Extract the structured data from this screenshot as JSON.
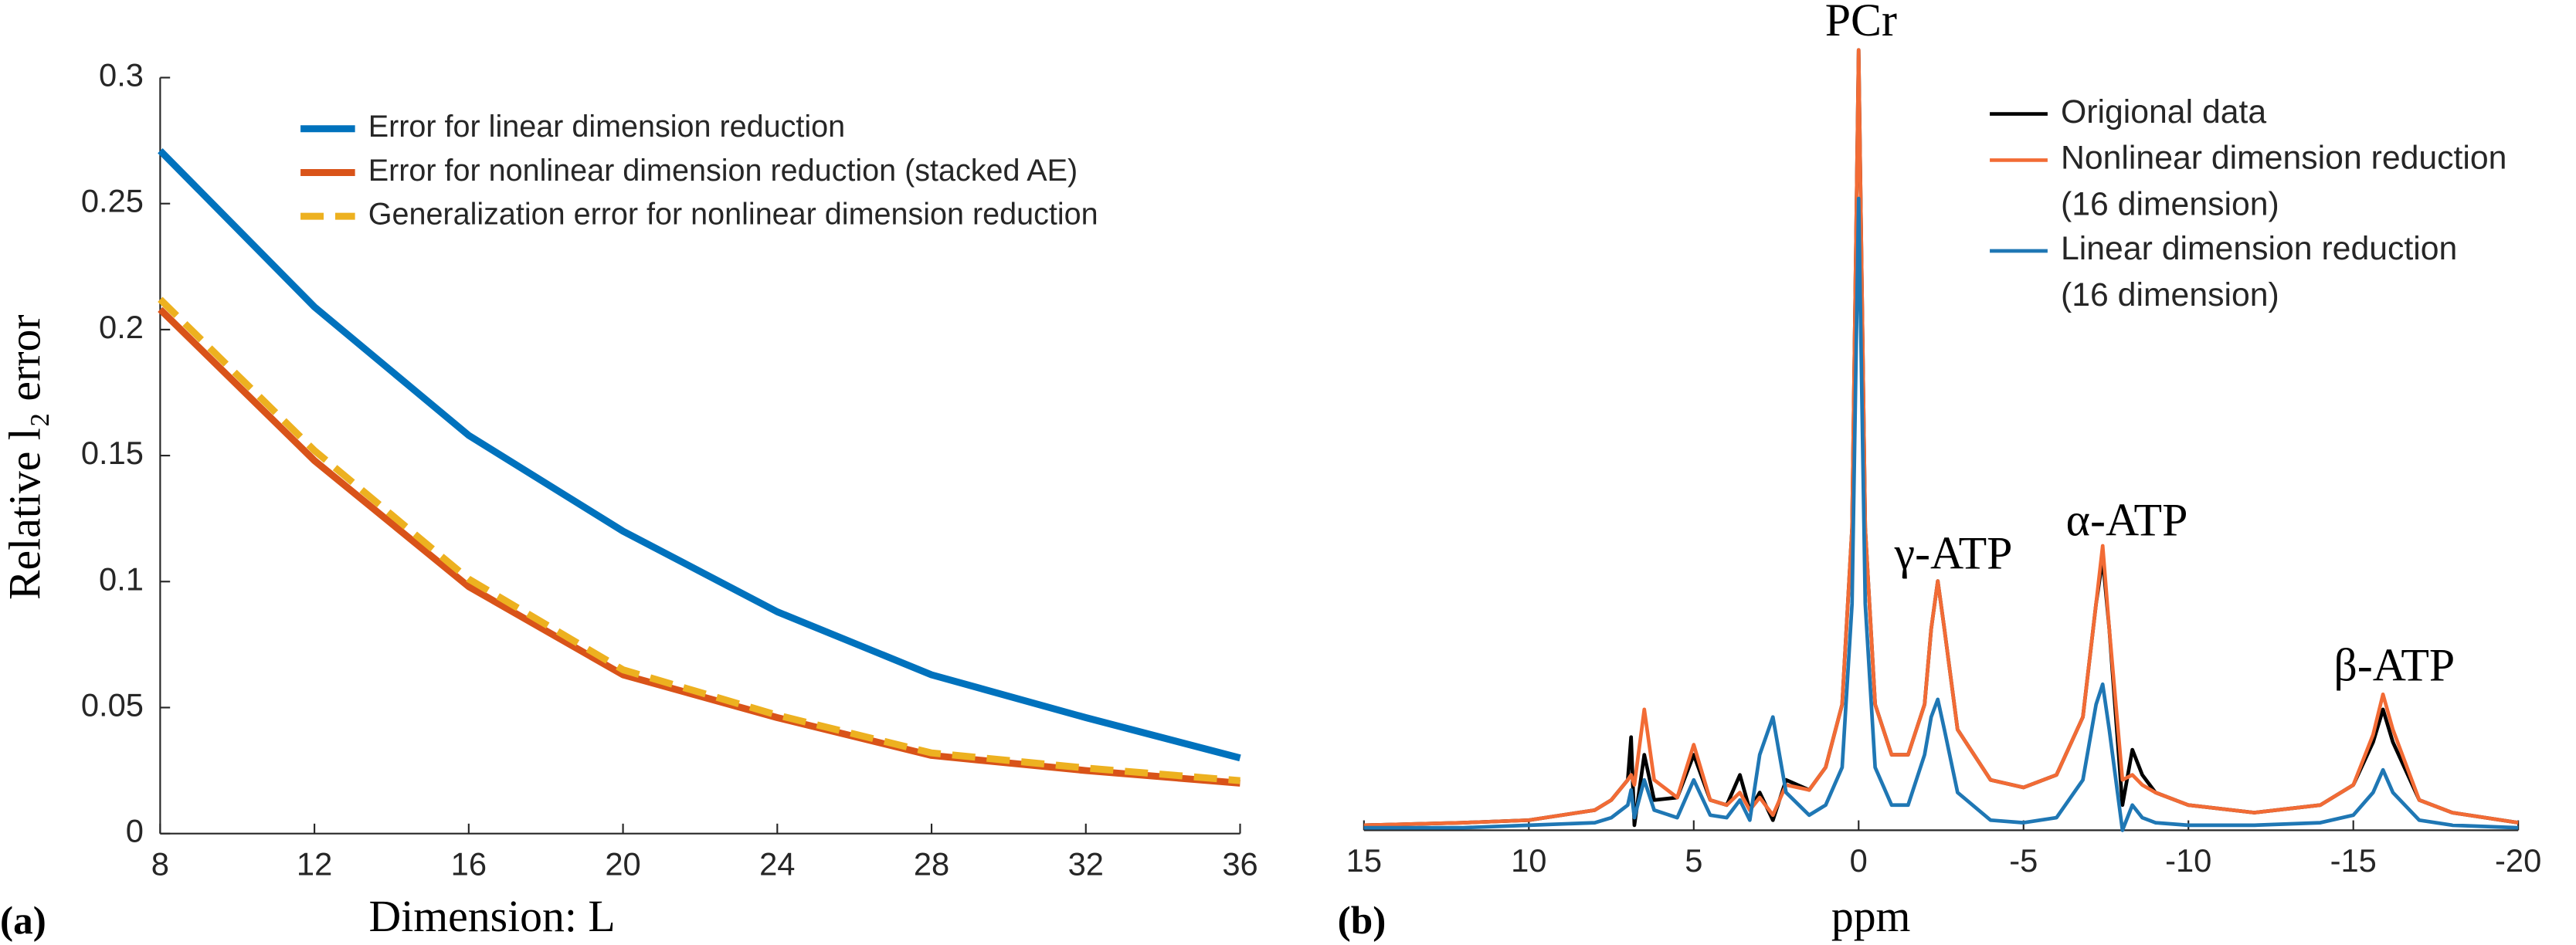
{
  "chart_data": [
    {
      "type": "line",
      "panel_label": "(a)",
      "xlabel": "Dimension: L",
      "ylabel": "Relative l₂ error",
      "x": [
        8,
        12,
        16,
        20,
        24,
        28,
        32,
        36
      ],
      "xlim": [
        8,
        36
      ],
      "xticks": [
        8,
        12,
        16,
        20,
        24,
        28,
        32,
        36
      ],
      "ylim": [
        0,
        0.3
      ],
      "yticks": [
        0,
        0.05,
        0.1,
        0.15,
        0.2,
        0.25,
        0.3
      ],
      "series": [
        {
          "name": "Error for linear dimension reduction",
          "color": "#0072bd",
          "linestyle": "solid",
          "values": [
            0.271,
            0.209,
            0.158,
            0.12,
            0.088,
            0.063,
            0.046,
            0.03
          ]
        },
        {
          "name": "Error for nonlinear dimension reduction (stacked AE)",
          "color": "#d95319",
          "linestyle": "solid",
          "values": [
            0.208,
            0.148,
            0.098,
            0.063,
            0.046,
            0.031,
            0.025,
            0.02
          ]
        },
        {
          "name": "Generalization error for nonlinear dimension reduction",
          "color": "#edb120",
          "linestyle": "dashed",
          "values": [
            0.212,
            0.152,
            0.101,
            0.065,
            0.047,
            0.032,
            0.026,
            0.021
          ]
        }
      ]
    },
    {
      "type": "line",
      "panel_label": "(b)",
      "xlabel": "ppm",
      "annotations": [
        "PCr",
        "γ-ATP",
        "α-ATP",
        "β-ATP"
      ],
      "x": [
        15,
        12,
        10,
        8,
        7.5,
        7,
        6.9,
        6.8,
        6.5,
        6.2,
        5.5,
        5.0,
        4.5,
        4,
        3.6,
        3.3,
        3.0,
        2.6,
        2.2,
        1.5,
        1,
        0.5,
        0.2,
        0,
        -0.2,
        -0.5,
        -1,
        -1.5,
        -2,
        -2.2,
        -2.4,
        -2.6,
        -3,
        -4,
        -5,
        -6,
        -6.8,
        -7.2,
        -7.4,
        -7.6,
        -8,
        -8.3,
        -8.6,
        -9,
        -10,
        -12,
        -14,
        -15,
        -15.6,
        -15.9,
        -16.2,
        -17,
        -18,
        -20
      ],
      "xlim": [
        15,
        -20
      ],
      "xticks": [
        15,
        10,
        5,
        0,
        -5,
        -10,
        -15,
        -20
      ],
      "ylim": [
        0,
        0.32
      ],
      "series": [
        {
          "name": "Origional data",
          "color": "#000000",
          "linestyle": "solid",
          "values": [
            0.002,
            0.003,
            0.004,
            0.008,
            0.012,
            0.02,
            0.037,
            0.002,
            0.03,
            0.012,
            0.013,
            0.03,
            0.012,
            0.01,
            0.022,
            0.008,
            0.015,
            0.004,
            0.02,
            0.016,
            0.025,
            0.05,
            0.12,
            0.31,
            0.12,
            0.05,
            0.03,
            0.03,
            0.05,
            0.08,
            0.099,
            0.08,
            0.04,
            0.02,
            0.017,
            0.022,
            0.045,
            0.09,
            0.108,
            0.08,
            0.01,
            0.032,
            0.022,
            0.015,
            0.01,
            0.007,
            0.01,
            0.018,
            0.035,
            0.048,
            0.035,
            0.012,
            0.007,
            0.003
          ]
        },
        {
          "name": "Nonlinear dimension reduction\n(16 dimension)",
          "color": "#f26b35",
          "linestyle": "solid",
          "values": [
            0.002,
            0.003,
            0.004,
            0.008,
            0.012,
            0.02,
            0.022,
            0.018,
            0.048,
            0.02,
            0.013,
            0.034,
            0.012,
            0.01,
            0.015,
            0.008,
            0.013,
            0.006,
            0.018,
            0.016,
            0.025,
            0.05,
            0.12,
            0.31,
            0.12,
            0.05,
            0.03,
            0.03,
            0.05,
            0.08,
            0.099,
            0.08,
            0.04,
            0.02,
            0.017,
            0.022,
            0.045,
            0.09,
            0.113,
            0.08,
            0.02,
            0.022,
            0.018,
            0.015,
            0.01,
            0.007,
            0.01,
            0.018,
            0.038,
            0.054,
            0.04,
            0.012,
            0.007,
            0.003
          ]
        },
        {
          "name": "Linear dimension reduction\n(16 dimension)",
          "color": "#1f77b4",
          "linestyle": "solid",
          "values": [
            0.001,
            0.001,
            0.002,
            0.003,
            0.005,
            0.01,
            0.016,
            0.005,
            0.02,
            0.008,
            0.005,
            0.02,
            0.006,
            0.005,
            0.012,
            0.004,
            0.03,
            0.045,
            0.015,
            0.006,
            0.01,
            0.025,
            0.09,
            0.251,
            0.09,
            0.025,
            0.01,
            0.01,
            0.03,
            0.045,
            0.052,
            0.04,
            0.015,
            0.004,
            0.003,
            0.005,
            0.02,
            0.05,
            0.058,
            0.04,
            0.0,
            0.01,
            0.005,
            0.003,
            0.002,
            0.002,
            0.003,
            0.006,
            0.015,
            0.024,
            0.015,
            0.004,
            0.002,
            0.001
          ]
        }
      ]
    }
  ]
}
